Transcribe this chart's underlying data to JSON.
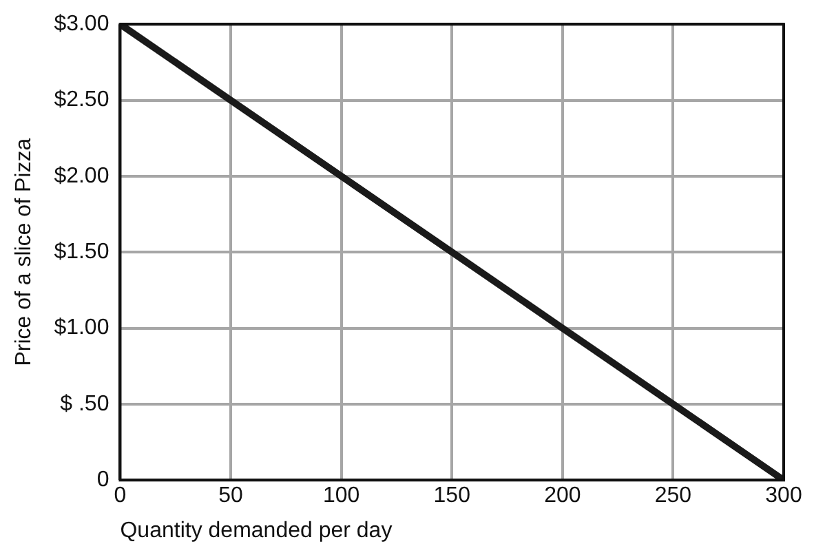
{
  "chart_data": {
    "type": "line",
    "xlabel": "Quantity demanded per day",
    "ylabel": "Price of a slice of Pizza",
    "x": [
      0,
      50,
      100,
      150,
      200,
      250,
      300
    ],
    "series": [
      {
        "color": "#1a1a1a",
        "values": [
          3,
          2.5,
          2,
          1.5,
          1,
          0.5,
          0
        ]
      }
    ],
    "xlim": [
      0,
      300
    ],
    "xticks": [
      0,
      50,
      100,
      150,
      200,
      250,
      300
    ],
    "ylim": [
      0,
      3
    ],
    "yticks": [
      {
        "value": 0,
        "label": "0"
      },
      {
        "value": 0.5,
        "label": "$ .50"
      },
      {
        "value": 1,
        "label": "$1.00"
      },
      {
        "value": 1.5,
        "label": "$1.50"
      },
      {
        "value": 2,
        "label": "$2.00"
      },
      {
        "value": 2.5,
        "label": "$2.50"
      },
      {
        "value": 3,
        "label": "$3.00"
      }
    ],
    "grid": true,
    "legend": false,
    "marker": "none",
    "line_style": "solid"
  }
}
